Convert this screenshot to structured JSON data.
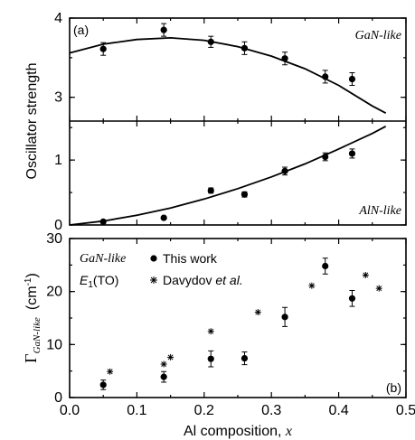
{
  "chart_data": [
    {
      "type": "scatter",
      "panel_label": "(a)",
      "ylabel": "Oscillator strength",
      "xlim": [
        0.0,
        0.5
      ],
      "ylim": [
        2.7,
        4.0
      ],
      "y_ticks": [
        "3",
        "4"
      ],
      "annotation": "GaN-like",
      "series": [
        {
          "x": [
            0.05,
            0.14,
            0.21,
            0.26,
            0.32,
            0.38,
            0.42
          ],
          "y": [
            3.61,
            3.85,
            3.7,
            3.62,
            3.49,
            3.26,
            3.23
          ],
          "yerr": [
            0.08,
            0.08,
            0.07,
            0.08,
            0.08,
            0.08,
            0.08
          ]
        }
      ],
      "fit_curve": {
        "x": [
          0.0,
          0.05,
          0.1,
          0.15,
          0.2,
          0.25,
          0.3,
          0.35,
          0.4,
          0.45,
          0.47
        ],
        "y": [
          3.56,
          3.67,
          3.73,
          3.75,
          3.72,
          3.64,
          3.52,
          3.36,
          3.15,
          2.89,
          2.8
        ]
      }
    },
    {
      "type": "scatter",
      "xlim": [
        0.0,
        0.5
      ],
      "ylim": [
        0.0,
        1.6
      ],
      "y_ticks": [
        "0",
        "1"
      ],
      "annotation": "AlN-like",
      "series": [
        {
          "x": [
            0.05,
            0.14,
            0.21,
            0.26,
            0.32,
            0.38,
            0.42
          ],
          "y": [
            0.05,
            0.11,
            0.53,
            0.47,
            0.83,
            1.05,
            1.1
          ],
          "yerr": [
            0.02,
            0.02,
            0.04,
            0.04,
            0.06,
            0.06,
            0.07
          ]
        }
      ],
      "fit_curve": {
        "x": [
          0.0,
          0.05,
          0.1,
          0.15,
          0.2,
          0.25,
          0.3,
          0.35,
          0.4,
          0.45,
          0.47
        ],
        "y": [
          0.0,
          0.06,
          0.15,
          0.26,
          0.4,
          0.56,
          0.74,
          0.94,
          1.17,
          1.41,
          1.52
        ]
      }
    },
    {
      "type": "scatter",
      "panel_label": "(b)",
      "xlabel": "Al composition, x",
      "xlim": [
        0.0,
        0.5
      ],
      "ylim": [
        0,
        30
      ],
      "x_ticks": [
        "0.0",
        "0.1",
        "0.2",
        "0.3",
        "0.4",
        "0.5"
      ],
      "y_ticks": [
        "0",
        "10",
        "20",
        "30"
      ],
      "annotation": "GaN-like",
      "mode_label": "E1(TO)",
      "ylabel_unit": "(cm-1)",
      "series": [
        {
          "name": "This work",
          "x": [
            0.05,
            0.14,
            0.21,
            0.26,
            0.32,
            0.38,
            0.42
          ],
          "y": [
            2.4,
            3.9,
            7.3,
            7.4,
            15.2,
            24.8,
            18.7
          ],
          "yerr": [
            0.9,
            1.0,
            1.5,
            1.2,
            1.8,
            1.5,
            1.5
          ]
        },
        {
          "name": "Davydov et al.",
          "x": [
            0.06,
            0.14,
            0.15,
            0.21,
            0.28,
            0.36,
            0.44,
            0.46
          ],
          "y": [
            4.9,
            6.3,
            7.6,
            12.5,
            16.1,
            21.1,
            23.1,
            20.6
          ]
        }
      ]
    }
  ],
  "legend": {
    "this_work": "This work",
    "davydov_prefix": "Davydov ",
    "davydov_etal": "et al."
  },
  "ylabel_b": {
    "symbol": "Γ",
    "subscript": "GaN-like",
    "unit_prefix": "(cm",
    "unit_exp": "-1",
    "unit_suffix": ")"
  },
  "mode_label": {
    "main": "E",
    "sub": "1",
    "rest": "(TO)"
  },
  "xlabel": {
    "prefix": "Al composition, ",
    "var": "x"
  }
}
